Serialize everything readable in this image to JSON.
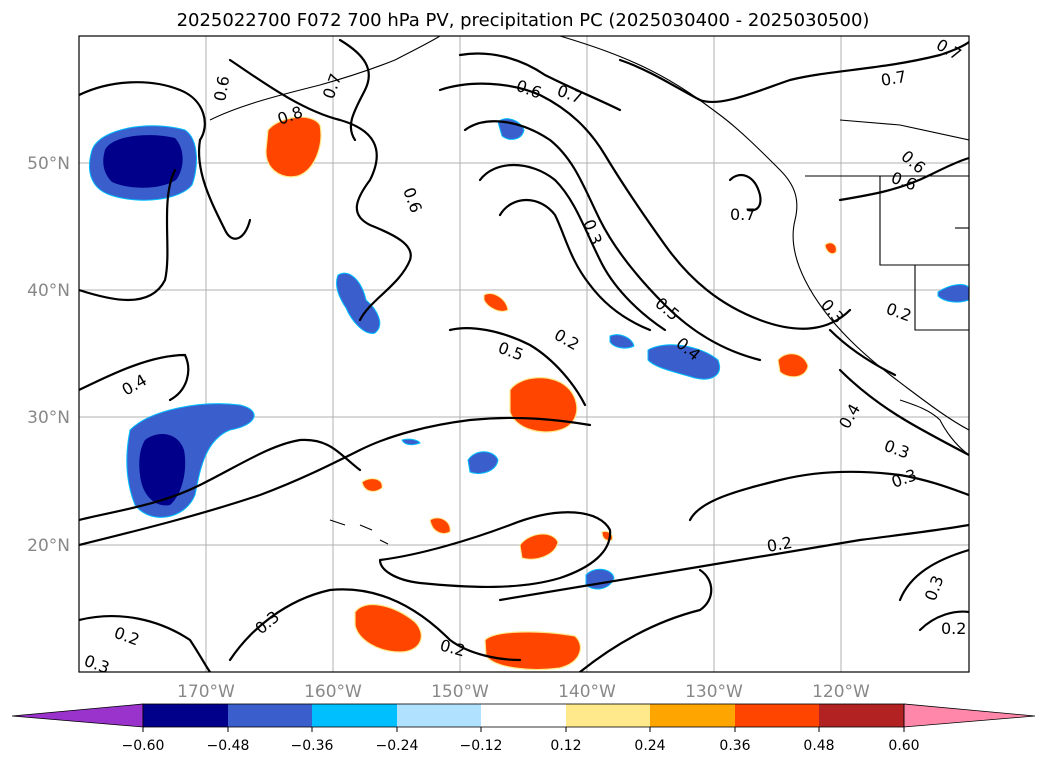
{
  "title": "2025022700 F072 700 hPa PV, precipitation PC (2025030400 - 2025030500)",
  "lat_labels": [
    "50°N",
    "40°N",
    "30°N",
    "20°N"
  ],
  "lon_labels": [
    "170°W",
    "160°W",
    "150°W",
    "140°W",
    "130°W",
    "120°W"
  ],
  "colorbar": {
    "ticks": [
      "−0.60",
      "−0.48",
      "−0.36",
      "−0.24",
      "−0.12",
      "0.12",
      "0.24",
      "0.36",
      "0.48",
      "0.60"
    ],
    "colors": [
      "#9933cc",
      "#00008b",
      "#3a5fcd",
      "#00bfff",
      "#b0e2ff",
      "#ffffff",
      "#ffe98a",
      "#ffa500",
      "#ff4500",
      "#b22222",
      "#ff88aa"
    ]
  },
  "contour_labels": [
    "0.6",
    "0.7",
    "0.8",
    "0.7",
    "0.6",
    "0.7",
    "0.6",
    "0.7",
    "0.7",
    "0.6",
    "0.6",
    "0.3",
    "0.5",
    "0.4",
    "0.2",
    "0.5",
    "0.4",
    "0.3",
    "0.2",
    "0.4",
    "0.3",
    "0.3",
    "0.2",
    "0.2",
    "0.3",
    "0.2",
    "0.3",
    "0.2",
    "0.3"
  ]
}
